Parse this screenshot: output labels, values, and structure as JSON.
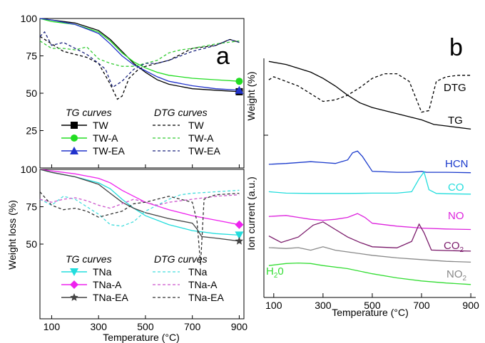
{
  "panel_labels": [
    "a",
    "b"
  ],
  "chart_data": [
    {
      "panel": "a-top",
      "type": "line",
      "title": "",
      "xlabel": "",
      "ylabel": "",
      "xlim": [
        50,
        920
      ],
      "ylim": [
        0,
        100
      ],
      "xticks": [
        100,
        300,
        500,
        700,
        900
      ],
      "yticks": [
        25,
        50,
        75,
        100
      ],
      "legend": {
        "position": "bottom",
        "tg_title": "TG curves",
        "dtg_title": "DTG curves",
        "tg_entries": [
          "TW",
          "TW-A",
          "TW-EA"
        ],
        "dtg_entries": [
          "TW",
          "TW-A",
          "TW-EA"
        ]
      },
      "series": [
        {
          "name": "TW",
          "kind": "TG",
          "color": "#000000",
          "marker": "square",
          "x": [
            50,
            100,
            200,
            300,
            350,
            400,
            450,
            500,
            550,
            600,
            700,
            800,
            900
          ],
          "y": [
            100,
            99,
            97,
            92,
            86,
            78,
            70,
            64,
            59,
            56,
            53,
            52,
            51
          ]
        },
        {
          "name": "TW-A",
          "kind": "TG",
          "color": "#22dd22",
          "marker": "circle",
          "x": [
            50,
            100,
            200,
            300,
            350,
            400,
            450,
            500,
            550,
            600,
            700,
            800,
            900
          ],
          "y": [
            100,
            98,
            96,
            91,
            85,
            77,
            71,
            67,
            64,
            62,
            60,
            59,
            58
          ]
        },
        {
          "name": "TW-EA",
          "kind": "TG",
          "color": "#2233cc",
          "marker": "triangle",
          "x": [
            50,
            100,
            200,
            300,
            350,
            400,
            450,
            500,
            550,
            600,
            700,
            800,
            900
          ],
          "y": [
            100,
            99,
            96,
            90,
            83,
            75,
            69,
            65,
            61,
            58,
            55,
            53,
            52
          ]
        },
        {
          "name": "TW",
          "kind": "DTG",
          "color": "#000000",
          "x": [
            50,
            80,
            150,
            200,
            250,
            300,
            350,
            380,
            400,
            430,
            470,
            500,
            550,
            600,
            700,
            800,
            860,
            900
          ],
          "y": [
            88,
            85,
            78,
            76,
            74,
            70,
            56,
            46,
            48,
            60,
            66,
            68,
            70,
            72,
            80,
            82,
            86,
            84
          ]
        },
        {
          "name": "TW-A",
          "kind": "DTG",
          "color": "#33cc33",
          "x": [
            50,
            100,
            150,
            200,
            250,
            300,
            350,
            400,
            450,
            500,
            550,
            600,
            650,
            700,
            800,
            900
          ],
          "y": [
            85,
            80,
            80,
            79,
            81,
            73,
            70,
            68,
            68,
            70,
            72,
            77,
            79,
            80,
            83,
            85
          ]
        },
        {
          "name": "TW-EA",
          "kind": "DTG",
          "color": "#1a237e",
          "x": [
            50,
            70,
            100,
            150,
            200,
            250,
            300,
            330,
            360,
            400,
            450,
            500,
            550,
            600,
            700,
            800,
            860,
            900
          ],
          "y": [
            88,
            91,
            82,
            84,
            80,
            76,
            70,
            66,
            54,
            58,
            66,
            70,
            70,
            72,
            78,
            82,
            86,
            84
          ]
        }
      ]
    },
    {
      "panel": "a-bottom",
      "type": "line",
      "title": "",
      "xlabel": "Temperature (°C)",
      "ylabel": "Weight loss (%)",
      "xlim": [
        50,
        920
      ],
      "ylim": [
        0,
        100
      ],
      "xticks": [
        100,
        300,
        500,
        700,
        900
      ],
      "yticks": [
        50,
        75,
        100
      ],
      "legend": {
        "position": "bottom",
        "tg_title": "TG curves",
        "dtg_title": "DTG curves",
        "tg_entries": [
          "TNa",
          "TNa-A",
          "TNa-EA"
        ],
        "dtg_entries": [
          "TNa",
          "TNa-A",
          "TNa-EA"
        ]
      },
      "series": [
        {
          "name": "TNa",
          "kind": "TG",
          "color": "#22dddd",
          "marker": "triangle-down",
          "x": [
            50,
            100,
            200,
            300,
            350,
            400,
            450,
            500,
            600,
            700,
            800,
            900
          ],
          "y": [
            100,
            98,
            95,
            91,
            87,
            80,
            74,
            69,
            63,
            59,
            57,
            56
          ]
        },
        {
          "name": "TNa-A",
          "kind": "TG",
          "color": "#ee22ee",
          "marker": "diamond",
          "x": [
            50,
            100,
            200,
            300,
            350,
            400,
            450,
            500,
            600,
            700,
            800,
            900
          ],
          "y": [
            100,
            99,
            97,
            94,
            91,
            86,
            82,
            78,
            73,
            69,
            66,
            63
          ]
        },
        {
          "name": "TNa-EA",
          "kind": "TG",
          "color": "#444444",
          "marker": "star",
          "x": [
            50,
            100,
            200,
            300,
            350,
            400,
            450,
            500,
            600,
            700,
            720,
            740,
            800,
            900
          ],
          "y": [
            100,
            98,
            95,
            90,
            84,
            78,
            74,
            71,
            67,
            64,
            60,
            55,
            54,
            52
          ]
        },
        {
          "name": "TNa",
          "kind": "DTG",
          "color": "#44dddd",
          "x": [
            50,
            100,
            150,
            200,
            250,
            300,
            350,
            400,
            450,
            500,
            550,
            600,
            650,
            700,
            800,
            900
          ],
          "y": [
            80,
            76,
            82,
            80,
            75,
            70,
            63,
            62,
            65,
            72,
            76,
            80,
            83,
            84,
            85,
            86
          ]
        },
        {
          "name": "TNa-A",
          "kind": "DTG",
          "color": "#cc55cc",
          "x": [
            50,
            100,
            150,
            200,
            250,
            300,
            350,
            400,
            450,
            500,
            550,
            600,
            700,
            800,
            900
          ],
          "y": [
            80,
            78,
            80,
            81,
            79,
            76,
            74,
            77,
            80,
            78,
            76,
            78,
            80,
            82,
            83
          ]
        },
        {
          "name": "TNa-EA",
          "kind": "DTG",
          "color": "#333333",
          "x": [
            50,
            100,
            150,
            200,
            250,
            300,
            350,
            400,
            450,
            500,
            550,
            600,
            650,
            700,
            720,
            735,
            750,
            780,
            800,
            900
          ],
          "y": [
            85,
            76,
            73,
            74,
            72,
            68,
            70,
            72,
            77,
            78,
            80,
            82,
            80,
            78,
            65,
            36,
            80,
            82,
            83,
            84
          ]
        }
      ]
    },
    {
      "panel": "b",
      "type": "line",
      "title": "",
      "xlabel": "Temperature (°C)",
      "ylabel_top": "Weight (%)",
      "ylabel_bottom": "Ion current (a.u.)",
      "xlim": [
        60,
        920
      ],
      "xticks": [
        100,
        300,
        500,
        700,
        900
      ],
      "yticks": [],
      "series": [
        {
          "name": "DTG",
          "label": "DTG",
          "color": "#000000",
          "dash": "dashed",
          "x": [
            80,
            100,
            150,
            200,
            250,
            300,
            350,
            400,
            450,
            500,
            550,
            600,
            650,
            700,
            730,
            760,
            800,
            850,
            900
          ],
          "y": [
            0.72,
            0.76,
            0.7,
            0.64,
            0.54,
            0.44,
            0.46,
            0.52,
            0.62,
            0.74,
            0.8,
            0.8,
            0.7,
            0.3,
            0.32,
            0.7,
            0.76,
            0.78,
            0.78
          ]
        },
        {
          "name": "TG",
          "label": "TG",
          "color": "#000000",
          "dash": "solid",
          "x": [
            80,
            150,
            250,
            300,
            350,
            400,
            450,
            500,
            600,
            700,
            750,
            800,
            900
          ],
          "y": [
            0.96,
            0.92,
            0.82,
            0.74,
            0.64,
            0.52,
            0.42,
            0.36,
            0.28,
            0.2,
            0.14,
            0.12,
            0.08
          ]
        },
        {
          "name": "HCN",
          "label": "HCN",
          "color": "#1a3acc",
          "x": [
            80,
            150,
            250,
            300,
            350,
            400,
            420,
            440,
            460,
            500,
            600,
            650,
            700,
            720,
            750,
            800,
            900
          ],
          "y": [
            0.34,
            0.36,
            0.4,
            0.38,
            0.36,
            0.44,
            0.6,
            0.64,
            0.52,
            0.18,
            0.16,
            0.16,
            0.18,
            0.16,
            0.16,
            0.16,
            0.15
          ]
        },
        {
          "name": "CO",
          "label": "CO",
          "color": "#22dddd",
          "x": [
            80,
            150,
            250,
            300,
            400,
            500,
            600,
            660,
            690,
            710,
            730,
            760,
            800,
            900
          ],
          "y": [
            0.22,
            0.18,
            0.17,
            0.17,
            0.17,
            0.18,
            0.18,
            0.22,
            0.6,
            0.8,
            0.28,
            0.17,
            0.16,
            0.15
          ]
        },
        {
          "name": "NO",
          "label": "NO",
          "color": "#dd22dd",
          "x": [
            80,
            150,
            200,
            250,
            300,
            350,
            400,
            440,
            470,
            500,
            600,
            700,
            800,
            900
          ],
          "y": [
            0.38,
            0.4,
            0.36,
            0.32,
            0.3,
            0.32,
            0.36,
            0.44,
            0.36,
            0.24,
            0.18,
            0.14,
            0.12,
            0.11
          ]
        },
        {
          "name": "CO2",
          "label": "CO",
          "label_sub": "2",
          "color": "#7a1a6a",
          "x": [
            80,
            130,
            200,
            260,
            300,
            350,
            400,
            450,
            500,
            600,
            660,
            690,
            710,
            740,
            800,
            900
          ],
          "y": [
            0.4,
            0.28,
            0.38,
            0.6,
            0.66,
            0.52,
            0.38,
            0.28,
            0.2,
            0.18,
            0.3,
            0.62,
            0.46,
            0.14,
            0.13,
            0.12
          ]
        },
        {
          "name": "NO2",
          "label": "NO",
          "label_sub": "2",
          "color": "#888888",
          "x": [
            80,
            150,
            200,
            250,
            300,
            350,
            400,
            500,
            600,
            700,
            800,
            900
          ],
          "y": [
            0.5,
            0.48,
            0.5,
            0.44,
            0.52,
            0.44,
            0.4,
            0.32,
            0.26,
            0.22,
            0.18,
            0.16
          ]
        },
        {
          "name": "H2O",
          "label": "H",
          "label_sub": "2",
          "label_tail": "0",
          "color": "#33dd33",
          "x": [
            80,
            150,
            200,
            250,
            300,
            400,
            500,
            600,
            700,
            800,
            900
          ],
          "y": [
            0.4,
            0.44,
            0.45,
            0.44,
            0.4,
            0.34,
            0.24,
            0.16,
            0.1,
            0.06,
            0.03
          ]
        }
      ]
    }
  ]
}
